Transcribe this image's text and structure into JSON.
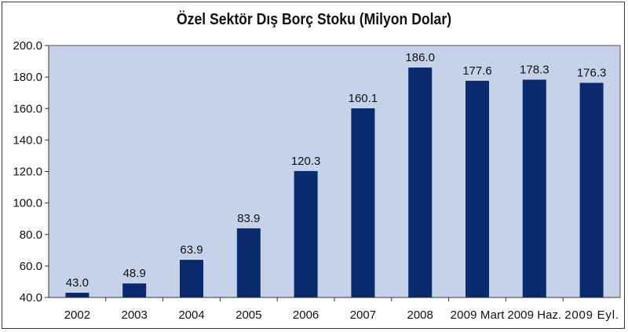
{
  "chart_data": {
    "type": "bar",
    "title": "Özel Sektör Dış Borç Stoku (Milyon Dolar)",
    "categories": [
      "2002",
      "2003",
      "2004",
      "2005",
      "2006",
      "2007",
      "2008",
      "2009 Mart",
      "2009 Haz.",
      "2009 Eyl."
    ],
    "values": [
      43.0,
      48.9,
      63.9,
      83.9,
      120.3,
      160.1,
      186.0,
      177.6,
      178.3,
      176.3
    ],
    "value_labels": [
      "43.0",
      "48.9",
      "63.9",
      "83.9",
      "120.3",
      "160.1",
      "186.0",
      "177.6",
      "178.3",
      "176.3"
    ],
    "ylim": [
      40,
      200
    ],
    "yticks": [
      "40.0",
      "60.0",
      "80.0",
      "100.0",
      "120.0",
      "140.0",
      "160.0",
      "180.0",
      "200.0"
    ],
    "xlabel": "",
    "ylabel": "",
    "grid": false,
    "legend": "none",
    "colors": {
      "bar": "#0a2a6e",
      "plot_bg": "#c6d2ea",
      "plot_border": "#555555"
    }
  }
}
